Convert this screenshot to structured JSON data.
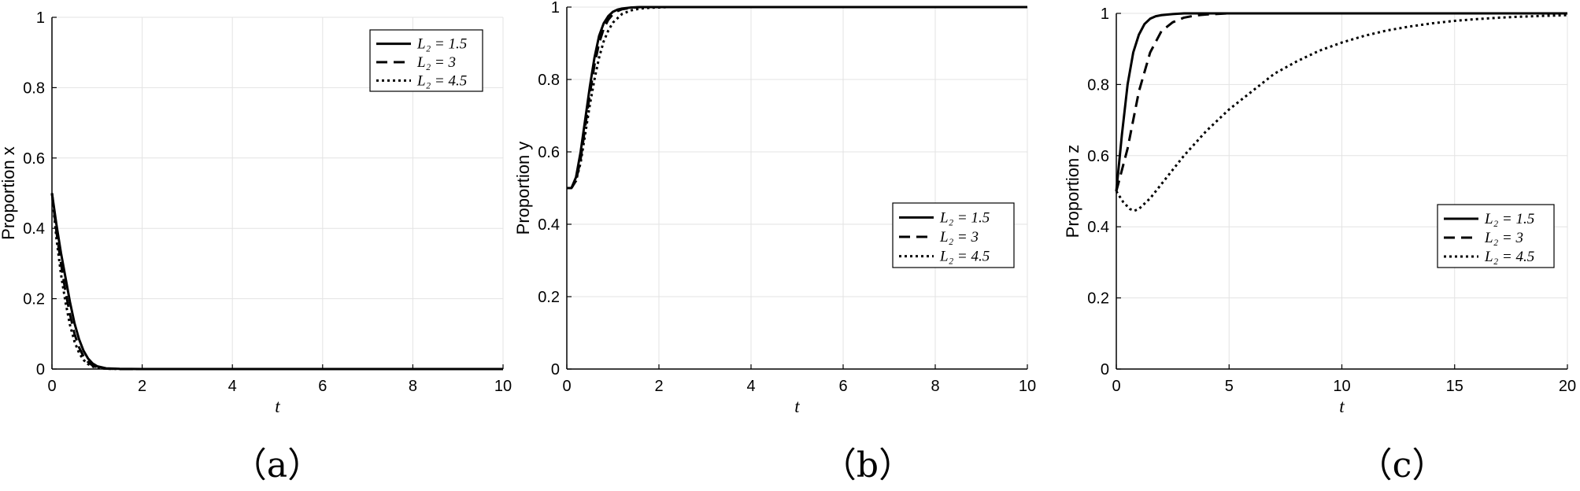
{
  "chart_data": [
    {
      "type": "line",
      "caption": "（a）",
      "xlabel": "t",
      "ylabel": "Proportion x",
      "xlim": [
        0,
        10
      ],
      "ylim": [
        0,
        1
      ],
      "xticks": [
        0,
        2,
        4,
        6,
        8,
        10
      ],
      "yticks": [
        0,
        0.2,
        0.4,
        0.6,
        0.8,
        1
      ],
      "grid": true,
      "legend_position": "top-right",
      "series": [
        {
          "name": "L₂ = 1.5",
          "style": "solid",
          "x": [
            0,
            0.1,
            0.2,
            0.3,
            0.4,
            0.5,
            0.6,
            0.7,
            0.8,
            0.9,
            1.0,
            1.2,
            1.5,
            2,
            10
          ],
          "y": [
            0.5,
            0.41,
            0.33,
            0.26,
            0.19,
            0.13,
            0.085,
            0.052,
            0.03,
            0.016,
            0.008,
            0.002,
            0.0005,
            0,
            0
          ]
        },
        {
          "name": "L₂ = 3",
          "style": "dashed",
          "x": [
            0,
            0.1,
            0.2,
            0.3,
            0.4,
            0.5,
            0.6,
            0.7,
            0.8,
            0.9,
            1.0,
            1.2,
            1.5,
            2,
            10
          ],
          "y": [
            0.5,
            0.39,
            0.3,
            0.22,
            0.155,
            0.1,
            0.062,
            0.036,
            0.02,
            0.01,
            0.005,
            0.001,
            0,
            0,
            0
          ]
        },
        {
          "name": "L₂ = 4.5",
          "style": "dotted",
          "x": [
            0,
            0.1,
            0.2,
            0.3,
            0.4,
            0.5,
            0.6,
            0.7,
            0.8,
            0.9,
            1.0,
            1.2,
            1.5,
            2,
            10
          ],
          "y": [
            0.5,
            0.37,
            0.27,
            0.19,
            0.125,
            0.078,
            0.046,
            0.026,
            0.014,
            0.007,
            0.003,
            0.001,
            0,
            0,
            0
          ]
        }
      ]
    },
    {
      "type": "line",
      "caption": "（b）",
      "xlabel": "t",
      "ylabel": "Proportion y",
      "xlim": [
        0,
        10
      ],
      "ylim": [
        0,
        1
      ],
      "xticks": [
        0,
        2,
        4,
        6,
        8,
        10
      ],
      "yticks": [
        0,
        0.2,
        0.4,
        0.6,
        0.8,
        1
      ],
      "grid": true,
      "legend_position": "right",
      "series": [
        {
          "name": "L₂ = 1.5",
          "style": "solid",
          "x": [
            0,
            0.1,
            0.2,
            0.3,
            0.4,
            0.5,
            0.6,
            0.7,
            0.8,
            0.9,
            1.0,
            1.1,
            1.2,
            1.4,
            1.6,
            2,
            10
          ],
          "y": [
            0.5,
            0.5,
            0.53,
            0.6,
            0.69,
            0.78,
            0.86,
            0.92,
            0.955,
            0.975,
            0.987,
            0.993,
            0.996,
            0.999,
            1,
            1,
            1
          ]
        },
        {
          "name": "L₂ = 3",
          "style": "dashed",
          "x": [
            0,
            0.1,
            0.2,
            0.3,
            0.4,
            0.5,
            0.6,
            0.7,
            0.8,
            0.9,
            1.0,
            1.1,
            1.2,
            1.4,
            1.6,
            2,
            10
          ],
          "y": [
            0.5,
            0.5,
            0.52,
            0.58,
            0.67,
            0.76,
            0.84,
            0.9,
            0.94,
            0.965,
            0.98,
            0.989,
            0.994,
            0.998,
            1,
            1,
            1
          ]
        },
        {
          "name": "L₂ = 4.5",
          "style": "dotted",
          "x": [
            0,
            0.1,
            0.2,
            0.3,
            0.4,
            0.5,
            0.6,
            0.7,
            0.8,
            0.9,
            1.0,
            1.2,
            1.4,
            1.6,
            1.8,
            2.0,
            2.2,
            10
          ],
          "y": [
            0.5,
            0.5,
            0.52,
            0.57,
            0.65,
            0.73,
            0.8,
            0.86,
            0.905,
            0.935,
            0.957,
            0.981,
            0.991,
            0.996,
            0.998,
            0.999,
            1,
            1
          ]
        }
      ]
    },
    {
      "type": "line",
      "caption": "（c）",
      "xlabel": "t",
      "ylabel": "Proportion z",
      "xlim": [
        0,
        20
      ],
      "ylim": [
        0,
        1
      ],
      "xticks": [
        0,
        5,
        10,
        15,
        20
      ],
      "yticks": [
        0,
        0.2,
        0.4,
        0.6,
        0.8,
        1
      ],
      "grid": true,
      "legend_position": "right",
      "series": [
        {
          "name": "L₂ = 1.5",
          "style": "solid",
          "x": [
            0,
            0.25,
            0.5,
            0.75,
            1.0,
            1.25,
            1.5,
            1.75,
            2.0,
            2.5,
            3.0,
            4.0,
            20
          ],
          "y": [
            0.5,
            0.66,
            0.8,
            0.89,
            0.94,
            0.97,
            0.985,
            0.992,
            0.995,
            0.998,
            1,
            1,
            1
          ]
        },
        {
          "name": "L₂ = 3",
          "style": "dashed",
          "x": [
            0,
            0.5,
            1.0,
            1.5,
            2.0,
            2.5,
            3.0,
            3.5,
            4.0,
            5.0,
            20
          ],
          "y": [
            0.5,
            0.62,
            0.78,
            0.89,
            0.95,
            0.975,
            0.988,
            0.994,
            0.997,
            1,
            1
          ]
        },
        {
          "name": "L₂ = 4.5",
          "style": "dotted",
          "x": [
            0,
            0.3,
            0.6,
            0.8,
            1.0,
            1.5,
            2,
            3,
            4,
            5,
            6,
            7,
            8,
            9,
            10,
            11,
            12,
            13,
            14,
            15,
            16,
            17,
            18,
            19,
            20
          ],
          "y": [
            0.5,
            0.47,
            0.45,
            0.445,
            0.45,
            0.48,
            0.52,
            0.6,
            0.67,
            0.73,
            0.78,
            0.83,
            0.865,
            0.895,
            0.918,
            0.937,
            0.952,
            0.963,
            0.972,
            0.979,
            0.984,
            0.988,
            0.991,
            0.993,
            0.995
          ]
        }
      ]
    }
  ]
}
